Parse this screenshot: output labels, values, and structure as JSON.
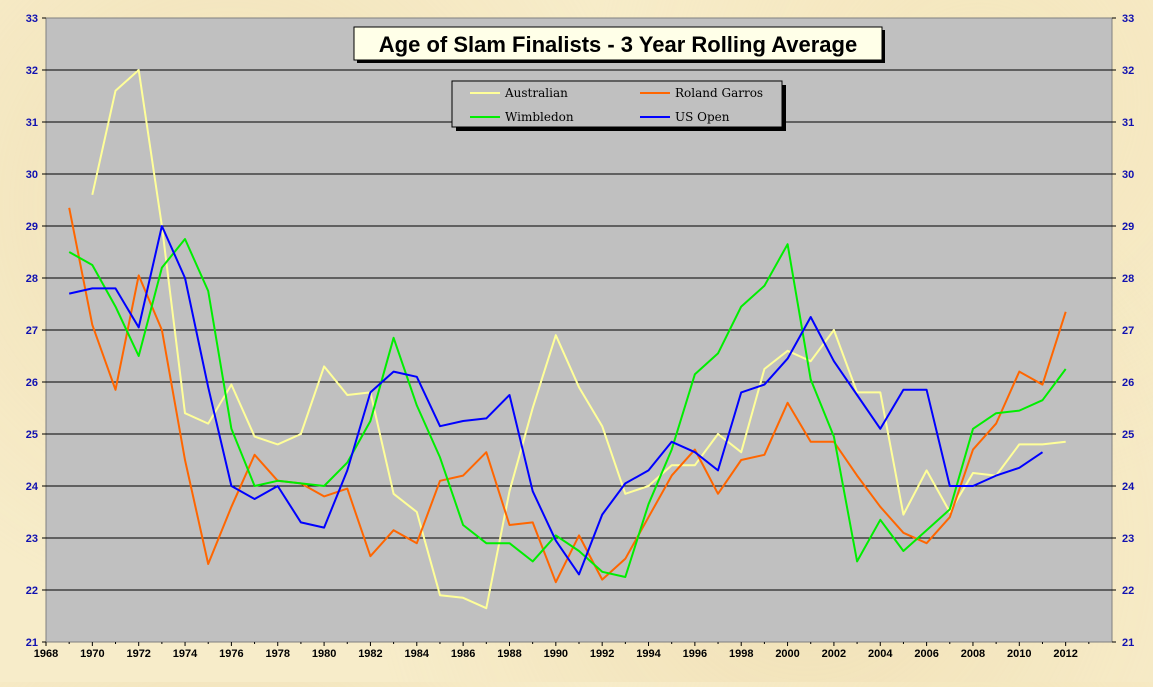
{
  "chart_data": {
    "type": "line",
    "title": "Age of Slam Finalists - 3 Year Rolling Average",
    "xlim": [
      1968,
      2014
    ],
    "ylim": [
      21,
      33
    ],
    "x_ticks": [
      "1968",
      "1970",
      "1972",
      "1974",
      "1976",
      "1978",
      "1980",
      "1982",
      "1984",
      "1986",
      "1988",
      "1990",
      "1992",
      "1994",
      "1996",
      "1998",
      "2000",
      "2002",
      "2004",
      "2006",
      "2008",
      "2010",
      "2012"
    ],
    "y_ticks": [
      "21",
      "22",
      "23",
      "24",
      "25",
      "26",
      "27",
      "28",
      "29",
      "30",
      "31",
      "32",
      "33"
    ],
    "grid": "horizontal",
    "legend_position": "top-center",
    "x": [
      1969,
      1970,
      1971,
      1972,
      1973,
      1974,
      1975,
      1976,
      1977,
      1978,
      1979,
      1980,
      1981,
      1982,
      1983,
      1984,
      1985,
      1986,
      1987,
      1988,
      1989,
      1990,
      1991,
      1992,
      1993,
      1994,
      1995,
      1996,
      1997,
      1998,
      1999,
      2000,
      2001,
      2002,
      2003,
      2004,
      2005,
      2006,
      2007,
      2008,
      2009,
      2010,
      2011,
      2012
    ],
    "series": [
      {
        "name": "Australian",
        "color": "#ffff99",
        "values": [
          null,
          29.6,
          31.6,
          32.0,
          29.0,
          25.4,
          25.2,
          25.95,
          24.95,
          24.8,
          25.0,
          26.3,
          25.75,
          25.8,
          23.85,
          23.5,
          21.9,
          21.85,
          21.65,
          23.9,
          25.5,
          26.9,
          25.9,
          25.15,
          23.85,
          24.0,
          24.4,
          24.4,
          25.0,
          24.65,
          26.25,
          26.6,
          26.4,
          27.0,
          25.8,
          25.8,
          23.45,
          24.3,
          23.5,
          24.25,
          24.2,
          24.8,
          24.8,
          24.85
        ]
      },
      {
        "name": "Roland Garros",
        "color": "#ff6600",
        "values": [
          29.35,
          27.1,
          25.85,
          28.05,
          27.0,
          24.5,
          22.5,
          23.6,
          24.6,
          24.1,
          24.05,
          23.8,
          23.95,
          22.65,
          23.15,
          22.9,
          24.1,
          24.2,
          24.65,
          23.25,
          23.3,
          22.15,
          23.05,
          22.2,
          22.6,
          23.4,
          24.2,
          24.7,
          23.85,
          24.5,
          24.6,
          25.6,
          24.85,
          24.85,
          24.2,
          23.6,
          23.1,
          22.9,
          23.4,
          24.7,
          25.2,
          26.2,
          25.95,
          27.35
        ]
      },
      {
        "name": "Wimbledon",
        "color": "#00ee00",
        "values": [
          28.5,
          28.25,
          27.45,
          26.5,
          28.2,
          28.75,
          27.75,
          25.1,
          24.0,
          24.1,
          24.05,
          24.0,
          24.45,
          25.25,
          26.85,
          25.55,
          24.55,
          23.25,
          22.9,
          22.9,
          22.55,
          23.05,
          22.75,
          22.35,
          22.25,
          23.65,
          24.7,
          26.15,
          26.55,
          27.45,
          27.85,
          28.65,
          26.05,
          24.95,
          22.55,
          23.35,
          22.75,
          23.15,
          23.55,
          25.1,
          25.4,
          25.45,
          25.65,
          26.25
        ]
      },
      {
        "name": "US Open",
        "color": "#0000ff",
        "values": [
          27.7,
          27.8,
          27.8,
          27.05,
          29.0,
          28.0,
          25.9,
          24.0,
          23.75,
          24.0,
          23.3,
          23.2,
          24.3,
          25.8,
          26.2,
          26.1,
          25.15,
          25.25,
          25.3,
          25.75,
          23.9,
          22.95,
          22.3,
          23.45,
          24.05,
          24.3,
          24.85,
          24.65,
          24.3,
          25.8,
          25.95,
          26.45,
          27.25,
          26.4,
          25.75,
          25.1,
          25.85,
          25.85,
          24.0,
          24.0,
          24.2,
          24.35,
          24.65,
          null
        ]
      }
    ]
  },
  "colors": {
    "plot_background": "#c0c0c0",
    "page_background": "#f7ecc9",
    "axis_tick_color": "#1010b0",
    "legend_background": "#c0c0c0"
  }
}
